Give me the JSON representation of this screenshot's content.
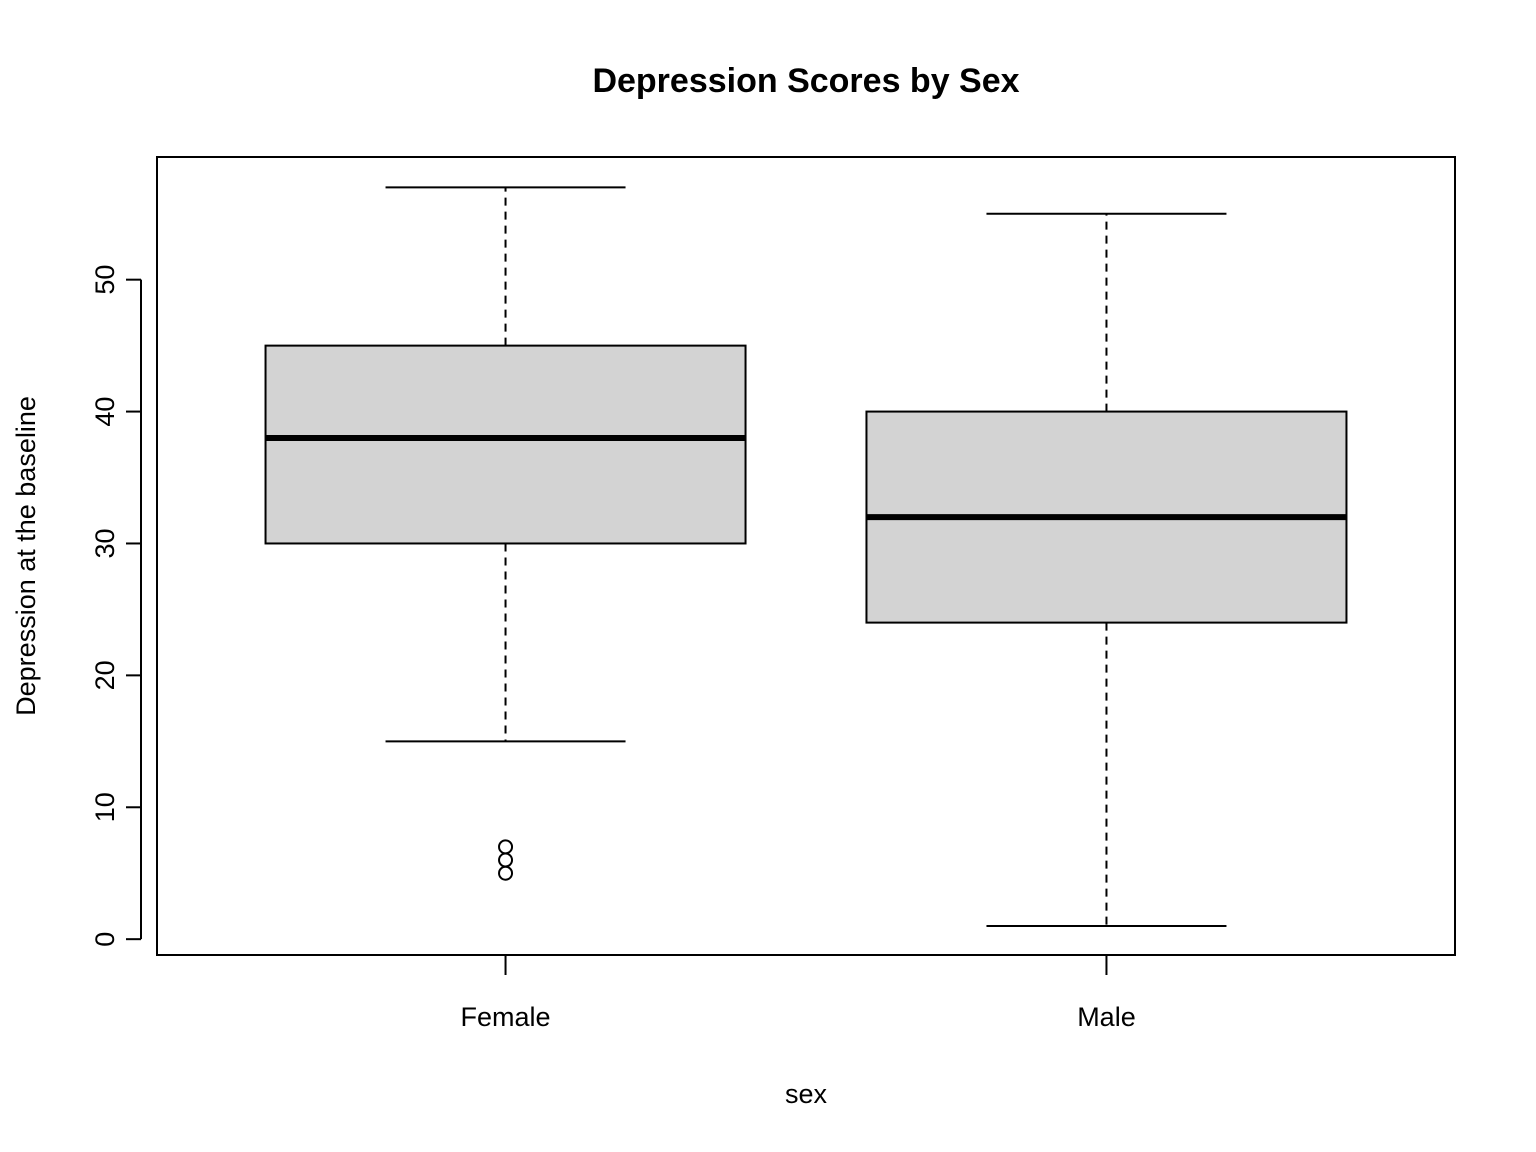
{
  "chart_data": {
    "type": "boxplot",
    "title": "Depression Scores by Sex",
    "xlabel": "sex",
    "ylabel": "Depression at the baseline",
    "ylim": [
      -1.2,
      59.3
    ],
    "yticks": [
      0,
      10,
      20,
      30,
      40,
      50
    ],
    "categories": [
      "Female",
      "Male"
    ],
    "box_fill": "#d3d3d3",
    "boxes": [
      {
        "category": "Female",
        "whisker_low": 15,
        "q1": 30,
        "median": 38,
        "q3": 45,
        "whisker_high": 57,
        "outliers": [
          5,
          6,
          7
        ]
      },
      {
        "category": "Male",
        "whisker_low": 1,
        "q1": 24,
        "median": 32,
        "q3": 40,
        "whisker_high": 55,
        "outliers": []
      }
    ]
  }
}
